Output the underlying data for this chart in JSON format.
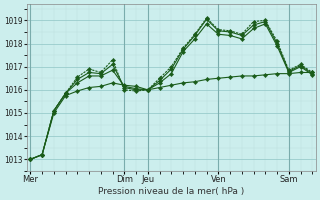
{
  "bg_color": "#cceeed",
  "grid_color_major": "#99cccc",
  "grid_color_minor": "#bbdddd",
  "line_color": "#1a5c1a",
  "xlabel": "Pression niveau de la mer( hPa )",
  "ylim": [
    1012.5,
    1019.7
  ],
  "yticks": [
    1013,
    1014,
    1015,
    1016,
    1017,
    1018,
    1019
  ],
  "day_labels": [
    "Mer",
    "Dim",
    "Jeu",
    "Ven",
    "Sam"
  ],
  "day_x": [
    0,
    8,
    10,
    16,
    22
  ],
  "n_points": 25,
  "xlim": [
    -0.3,
    24.3
  ],
  "series1": [
    1013.0,
    1013.2,
    1015.1,
    1015.85,
    1016.55,
    1016.9,
    1016.75,
    1017.3,
    1016.0,
    1015.95,
    1016.0,
    1016.5,
    1017.0,
    1017.8,
    1018.4,
    1019.1,
    1018.6,
    1018.55,
    1018.4,
    1018.95,
    1019.0,
    1018.1,
    1016.85,
    1017.1,
    1016.75
  ],
  "series2": [
    1013.0,
    1013.2,
    1015.1,
    1015.85,
    1016.45,
    1016.75,
    1016.7,
    1017.1,
    1016.1,
    1016.0,
    1016.0,
    1016.4,
    1016.9,
    1017.75,
    1018.35,
    1019.05,
    1018.55,
    1018.5,
    1018.35,
    1018.8,
    1018.95,
    1018.0,
    1016.8,
    1017.05,
    1016.7
  ],
  "series3": [
    1013.0,
    1013.2,
    1015.1,
    1015.85,
    1016.3,
    1016.6,
    1016.6,
    1016.85,
    1016.15,
    1016.05,
    1016.0,
    1016.3,
    1016.7,
    1017.65,
    1018.2,
    1018.85,
    1018.4,
    1018.35,
    1018.2,
    1018.65,
    1018.85,
    1017.9,
    1016.75,
    1017.0,
    1016.65
  ],
  "series4": [
    1013.0,
    1013.2,
    1015.0,
    1015.75,
    1015.95,
    1016.1,
    1016.15,
    1016.3,
    1016.2,
    1016.15,
    1016.0,
    1016.1,
    1016.2,
    1016.3,
    1016.35,
    1016.45,
    1016.5,
    1016.55,
    1016.6,
    1016.6,
    1016.65,
    1016.7,
    1016.7,
    1016.75,
    1016.75
  ]
}
